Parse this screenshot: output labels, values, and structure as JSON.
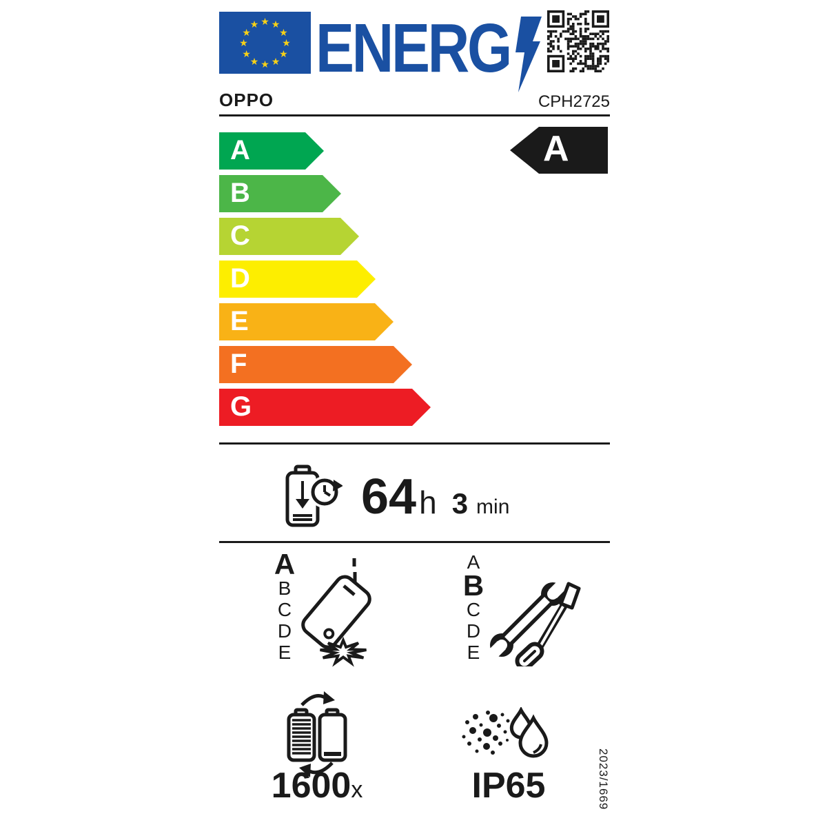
{
  "label": {
    "header": {
      "energy_word": "ENERG",
      "brand": "OPPO",
      "model": "CPH2725"
    },
    "efficiency_scale": {
      "grades": [
        {
          "letter": "A",
          "color": "#00a651"
        },
        {
          "letter": "B",
          "color": "#4cb648"
        },
        {
          "letter": "C",
          "color": "#b6d433"
        },
        {
          "letter": "D",
          "color": "#fdee00"
        },
        {
          "letter": "E",
          "color": "#f9b216"
        },
        {
          "letter": "F",
          "color": "#f37021"
        },
        {
          "letter": "G",
          "color": "#ed1c24"
        }
      ]
    },
    "rating_grade": "A",
    "battery_endurance": {
      "hours": "64",
      "hours_unit": "h",
      "minutes": "3",
      "minutes_unit": "min"
    },
    "free_fall_reliability": {
      "classes": [
        "A",
        "B",
        "C",
        "D",
        "E"
      ],
      "selected": "A"
    },
    "repairability": {
      "classes": [
        "A",
        "B",
        "C",
        "D",
        "E"
      ],
      "selected": "B"
    },
    "battery_cycles": {
      "value": "1600",
      "unit": "x"
    },
    "ingress_protection": "IP65",
    "regulation_number": "2023/1669",
    "colors": {
      "eu_blue": "#1a50a2",
      "star_yellow": "#f7d117",
      "ink": "#1a1a1a"
    }
  }
}
